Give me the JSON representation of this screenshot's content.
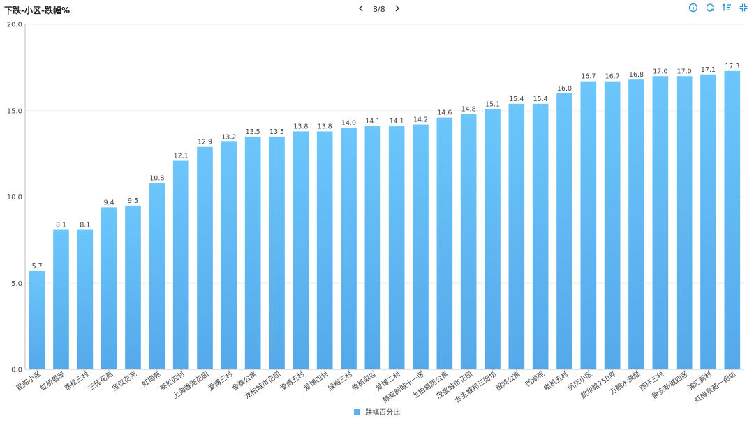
{
  "header": {
    "title": "下跌-小区-跌幅%",
    "page_indicator": "8/8",
    "icons": [
      "info-icon",
      "refresh-icon",
      "sort-icon",
      "collapse-icon"
    ]
  },
  "colors": {
    "bar_top": "#6cc6fb",
    "bar_bottom": "#55a9ea",
    "axis": "#bfbfbf",
    "grid": "#eeeeee",
    "label": "#444444",
    "toolbar_icon": "#2a8fd6"
  },
  "chart_data": {
    "type": "bar",
    "title": "",
    "xlabel": "",
    "ylabel": "",
    "ylim": [
      0,
      20
    ],
    "yticks": [
      "0.0",
      "5.0",
      "10.0",
      "15.0",
      "20.0"
    ],
    "grid": true,
    "legend_position": "bottom-center",
    "categories": [
      "昆阳小区",
      "虹桥盾邸",
      "莘松三村",
      "三佳花苑",
      "宝仪花苑",
      "虹梅苑",
      "莘松四村",
      "上海香港花园",
      "爱博三村",
      "金泰公寓",
      "龙柏城市花园",
      "爱博五村",
      "爱博四村",
      "绿梅三村",
      "秀枫翠谷",
      "爱博二村",
      "静安新城十一区",
      "龙柏易居公寓",
      "茂盛城市花园",
      "合生城邦三街坊",
      "银鸿公寓",
      "西湖苑",
      "电机五村",
      "凤庆小区",
      "航华路750弄",
      "万鹏水源墅",
      "西环三村",
      "静安新城四区",
      "浦汇新村",
      "虹梅景苑一街坊"
    ],
    "series": [
      {
        "name": "跌幅百分比",
        "values": [
          5.7,
          8.1,
          8.1,
          9.4,
          9.5,
          10.8,
          12.1,
          12.9,
          13.2,
          13.5,
          13.5,
          13.8,
          13.8,
          14.0,
          14.1,
          14.1,
          14.2,
          14.6,
          14.8,
          15.1,
          15.4,
          15.4,
          16.0,
          16.7,
          16.7,
          16.8,
          17.0,
          17.0,
          17.1,
          17.3
        ],
        "labels": [
          "5.7",
          "8.1",
          "8.1",
          "9.4",
          "9.5",
          "10.8",
          "12.1",
          "12.9",
          "13.2",
          "13.5",
          "13.5",
          "13.8",
          "13.8",
          "14.0",
          "14.1",
          "14.1",
          "14.2",
          "14.6",
          "14.8",
          "15.1",
          "15.4",
          "15.4",
          "16.0",
          "16.7",
          "16.7",
          "16.8",
          "17.0",
          "17.0",
          "17.1",
          "17.3"
        ]
      }
    ]
  }
}
